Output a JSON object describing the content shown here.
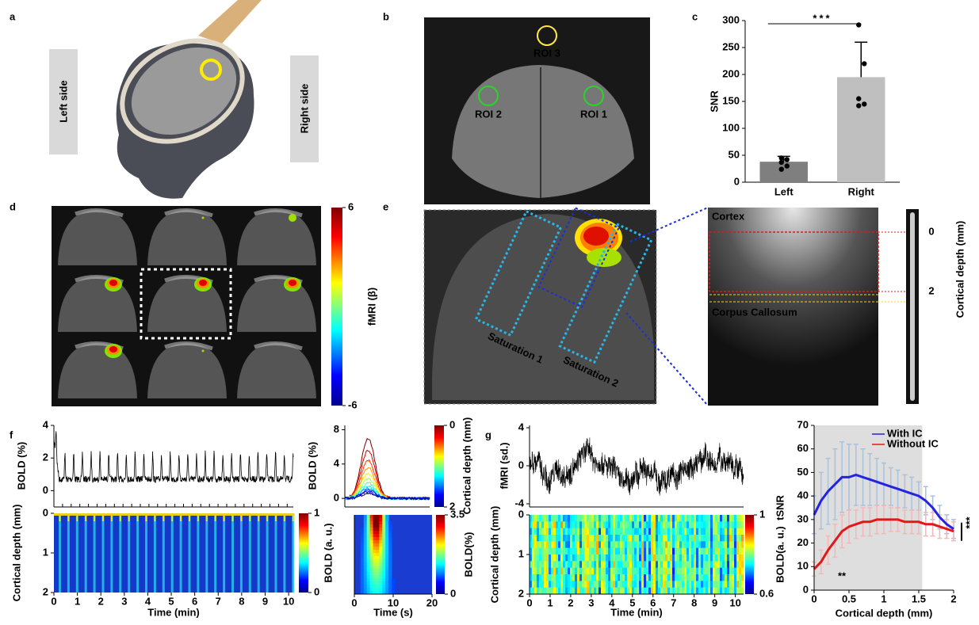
{
  "panel_labels": [
    "a",
    "b",
    "c",
    "d",
    "e",
    "f",
    "g"
  ],
  "a": {
    "left": "Left side",
    "right": "Right side"
  },
  "b": {
    "rois": [
      "ROI 3",
      "ROI 2",
      "ROI 1"
    ]
  },
  "d": {
    "colorbar_label": "fMRI (β)",
    "colorbar_ticks": [
      6,
      -6
    ],
    "clim": [
      -6,
      6
    ]
  },
  "e": {
    "saturation": [
      "Saturation 1",
      "Saturation 2"
    ],
    "cortex": "Cortex",
    "corpus_callosum": "Corpus Callosum",
    "depth_label": "Cortical depth (mm)",
    "depth_ticks": [
      0,
      2
    ],
    "depth_lim": [
      0,
      2
    ]
  },
  "f": {
    "trace": {
      "ylabel": "BOLD (%)",
      "yticks": [
        0,
        2,
        4
      ],
      "ylim": [
        -1,
        4
      ]
    },
    "map": {
      "ylabel": "Cortical depth (mm)",
      "yticks": [
        0,
        1,
        2
      ],
      "ylim": [
        0,
        2
      ],
      "xlabel": "Time (min)",
      "xticks": [
        0,
        1,
        2,
        3,
        4,
        5,
        6,
        7,
        8,
        9,
        10
      ],
      "xlim": [
        0,
        10.2
      ],
      "colorbar_label": "BOLD (a. u.)",
      "colorbar_ticks": [
        1,
        0
      ],
      "clim": [
        0,
        1
      ]
    },
    "avg": {
      "ylabel": "BOLD (%)",
      "yticks": [
        0,
        4,
        8
      ],
      "ylim": [
        -1,
        8.5
      ],
      "colorbar_label": "Cortical depth (mm)",
      "colorbar_ticks": [
        0,
        2
      ],
      "clim": [
        0,
        2
      ]
    },
    "avg_map": {
      "xlabel": "Time (s)",
      "xticks": [
        0,
        10,
        20
      ],
      "xlim": [
        0,
        20
      ],
      "colorbar_label": "BOLD(%)",
      "colorbar_ticks": [
        3.5,
        0
      ],
      "clim": [
        0,
        3.5
      ]
    }
  },
  "g": {
    "trace": {
      "ylabel": "fMRI (sd.)",
      "yticks": [
        4,
        0,
        -4
      ],
      "ylim": [
        -4,
        4
      ]
    },
    "map": {
      "ylabel": "Cortical depth (mm)",
      "yticks": [
        0,
        1,
        2
      ],
      "ylim": [
        0,
        2
      ],
      "xlabel": "Time (min)",
      "xticks": [
        0,
        1,
        2,
        3,
        4,
        5,
        6,
        7,
        8,
        9,
        10
      ],
      "xlim": [
        0,
        10.4
      ],
      "colorbar_label": "BOLD(a. u.)",
      "colorbar_ticks": [
        1,
        0.6
      ],
      "clim": [
        0.6,
        1
      ]
    }
  },
  "chart_data": [
    {
      "type": "bar",
      "ylabel": "SNR",
      "categories": [
        "Left",
        "Right"
      ],
      "values": [
        38,
        195
      ],
      "errors": [
        10,
        65
      ],
      "colors": [
        "#7f7f7f",
        "#bfbfbf"
      ],
      "points": [
        [
          45,
          42,
          37,
          30,
          24
        ],
        [
          292,
          220,
          155,
          145,
          142
        ]
      ],
      "significance": "***",
      "ylim": [
        0,
        300
      ],
      "yticks": [
        0,
        50,
        100,
        150,
        200,
        250,
        300
      ]
    },
    {
      "type": "line",
      "xlabel": "Cortical depth (mm)",
      "ylabel": "tSNR",
      "x": [
        0,
        0.1,
        0.2,
        0.3,
        0.4,
        0.5,
        0.6,
        0.7,
        0.8,
        0.9,
        1,
        1.1,
        1.2,
        1.3,
        1.4,
        1.5,
        1.6,
        1.7,
        1.8,
        1.9,
        2
      ],
      "series": [
        {
          "name": "With IC",
          "color": "#2424e0",
          "error_color": "#a9c2dc",
          "values": [
            32,
            38,
            42,
            45,
            48,
            48,
            49,
            48,
            47,
            46,
            45,
            44,
            43,
            42,
            41,
            40,
            38,
            35,
            31,
            28,
            26
          ],
          "errors": [
            8,
            12,
            14,
            15,
            15,
            14,
            13,
            12,
            11,
            10,
            9,
            8,
            8,
            7,
            7,
            6,
            6,
            5,
            5,
            4,
            4
          ]
        },
        {
          "name": "Without IC",
          "color": "#e01818",
          "error_color": "#f2b8b8",
          "values": [
            9,
            12,
            17,
            21,
            25,
            27,
            28,
            29,
            29,
            30,
            30,
            30,
            30,
            29,
            29,
            29,
            28,
            28,
            27,
            26,
            25
          ],
          "errors": [
            3,
            5,
            6,
            7,
            7,
            7,
            6,
            6,
            6,
            6,
            6,
            5,
            5,
            5,
            5,
            5,
            5,
            5,
            5,
            4,
            4
          ]
        }
      ],
      "shaded_xrange": [
        0,
        1.55
      ],
      "significance": [
        "***",
        "**"
      ],
      "xlim": [
        0,
        2
      ],
      "ylim": [
        0,
        70
      ],
      "xticks": [
        0,
        0.5,
        1,
        1.5,
        2
      ],
      "yticks": [
        0,
        10,
        20,
        30,
        40,
        50,
        60,
        70
      ]
    }
  ]
}
